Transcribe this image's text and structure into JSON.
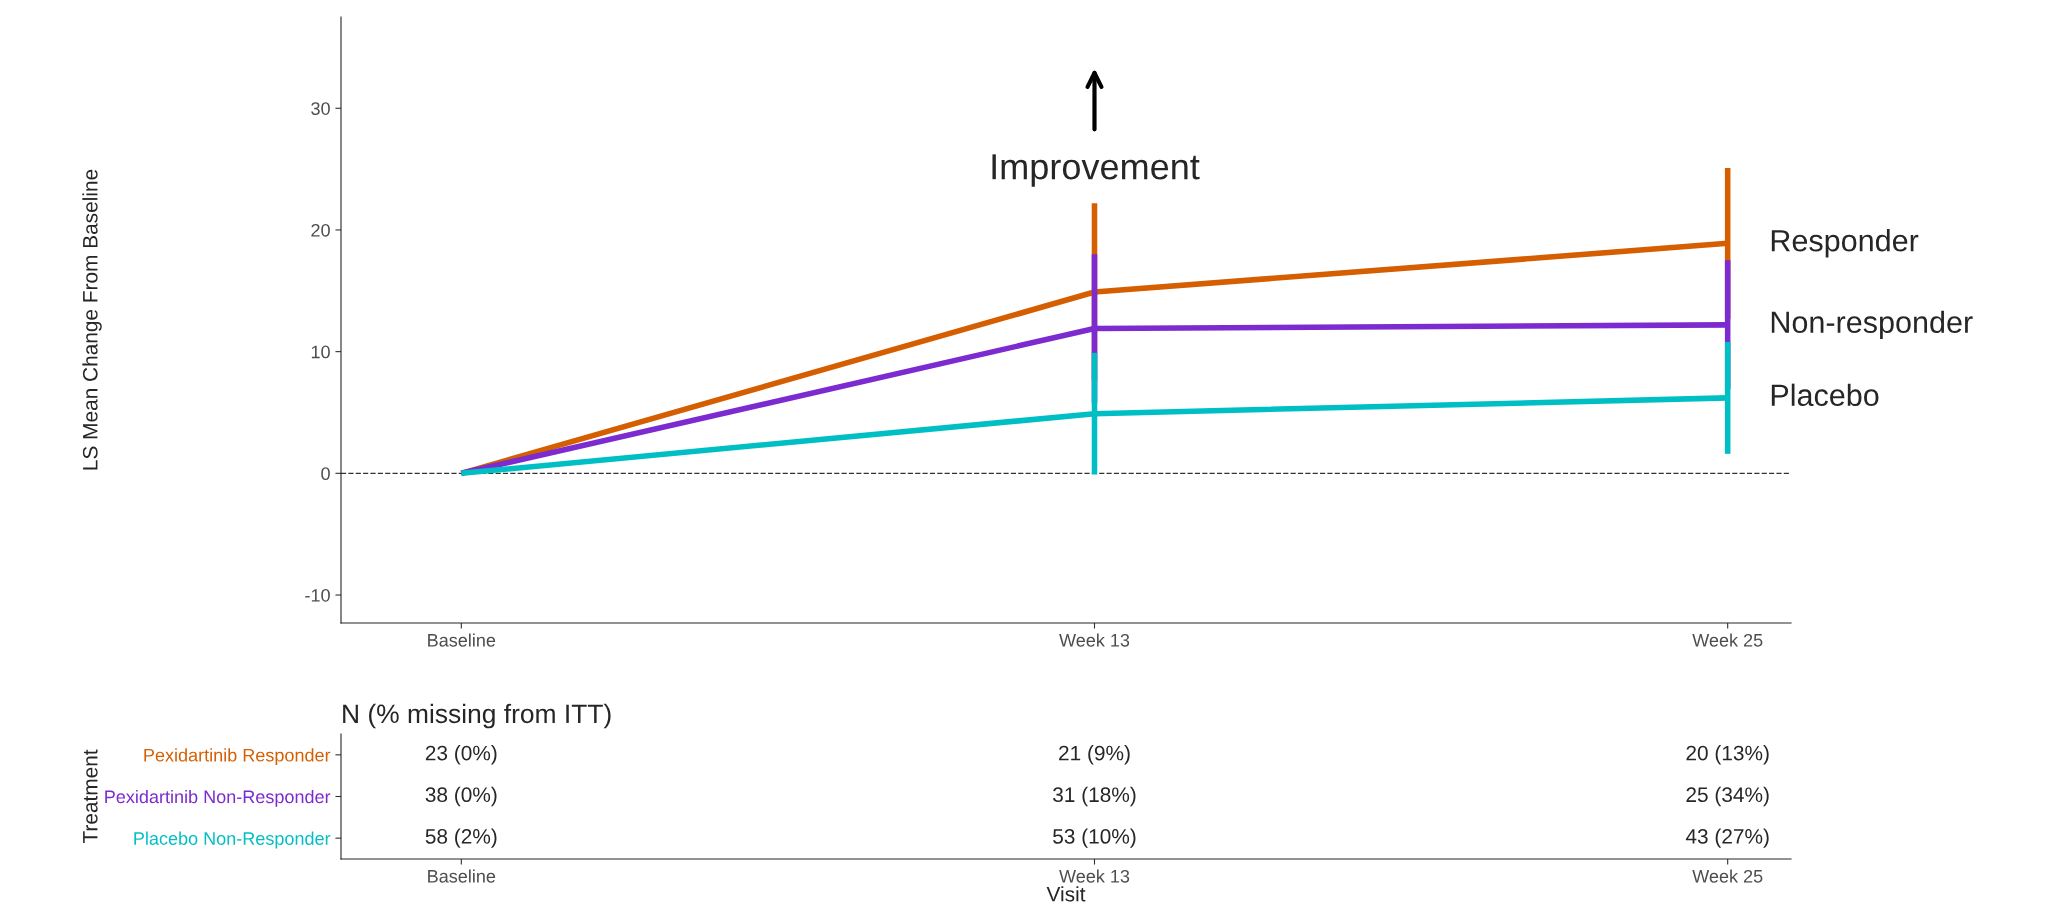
{
  "chart_data": [
    {
      "type": "line",
      "ylabel": "LS Mean Change From Baseline",
      "categories": [
        "Baseline",
        "Week 13",
        "Week 25"
      ],
      "series": [
        {
          "name": "Responder",
          "color": "#d55e00",
          "values": [
            0,
            14.9,
            18.9
          ],
          "errors": [
            null,
            7.3,
            6.2
          ]
        },
        {
          "name": "Non-responder",
          "color": "#7b2bd0",
          "values": [
            0,
            11.9,
            12.2
          ],
          "errors": [
            null,
            6.1,
            5.3
          ]
        },
        {
          "name": "Placebo",
          "color": "#00bfc4",
          "values": [
            0,
            4.9,
            6.2
          ],
          "errors": [
            null,
            5.0,
            4.6
          ]
        }
      ],
      "ylim": [
        -12.3,
        37.5
      ],
      "yticks": [
        -10,
        0,
        10,
        20,
        30
      ],
      "grid": false,
      "legend": false,
      "marker": "none",
      "line_style": "solid",
      "ref_lines": [
        {
          "axis": "y",
          "value": 0,
          "line_style": "dashed",
          "color": "#333333"
        }
      ],
      "annotations": [
        "Improvement"
      ]
    },
    {
      "type": "other",
      "title": "N (% missing from ITT)",
      "xlabel": "Visit",
      "ylabel": "Treatment",
      "categories": [
        "Baseline",
        "Week 13",
        "Week 25"
      ],
      "y_categories": [
        "Pexidartinib Responder",
        "Pexidartinib Non-Responder",
        "Placebo Non-Responder"
      ],
      "colors": [
        "#d55e00",
        "#7b2bd0",
        "#00bfc4"
      ],
      "cell_labels": [
        [
          "23 (0%)",
          "21 (9%)",
          "20 (13%)"
        ],
        [
          "38 (0%)",
          "31 (18%)",
          "25 (34%)"
        ],
        [
          "58 (2%)",
          "53 (10%)",
          "43 (27%)"
        ]
      ]
    }
  ]
}
